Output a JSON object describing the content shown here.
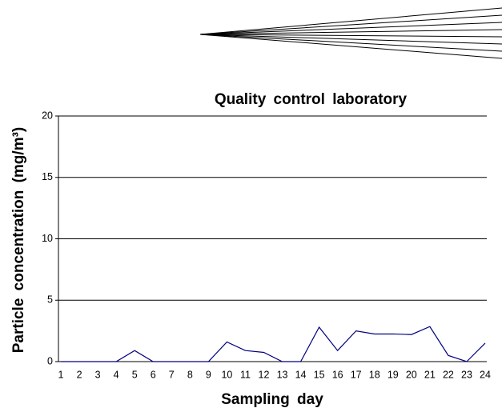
{
  "chart_data": {
    "type": "line",
    "title": "Quality control laboratory",
    "x_label": "Sampling day",
    "y_label": "Particle concentration (mg/m³)",
    "categories": [
      "1",
      "2",
      "3",
      "4",
      "5",
      "6",
      "7",
      "8",
      "9",
      "10",
      "11",
      "12",
      "13",
      "14",
      "15",
      "16",
      "17",
      "18",
      "19",
      "20",
      "21",
      "22",
      "23",
      "24"
    ],
    "series": [
      {
        "color": "#000080",
        "values": [
          0,
          0,
          0,
          0,
          0.9,
          0,
          0,
          0,
          0,
          1.6,
          0.9,
          0.75,
          0,
          0,
          2.8,
          0.9,
          2.5,
          2.25,
          2.25,
          2.2,
          2.85,
          0.5,
          0,
          1.5
        ]
      }
    ],
    "ylim": [
      0,
      20
    ],
    "yticks": [
      0,
      5,
      10,
      15,
      20
    ],
    "grid": true
  }
}
